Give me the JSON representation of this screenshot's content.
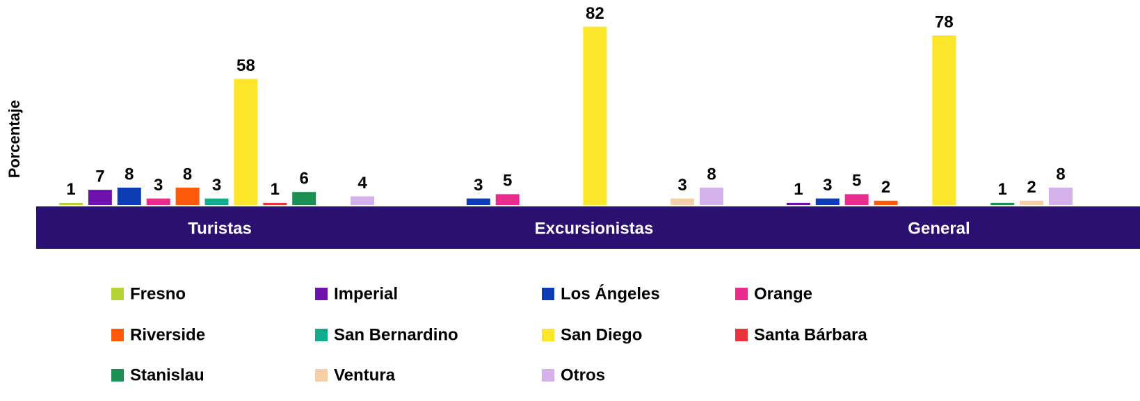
{
  "chart_data": {
    "type": "bar",
    "y_label": "Porcentaje",
    "categories": [
      "Turistas",
      "Excursionistas",
      "General"
    ],
    "ylim": [
      0,
      94
    ],
    "series": [
      {
        "name": "Fresno",
        "color": "#b5d334",
        "values": [
          1,
          null,
          null
        ]
      },
      {
        "name": "Imperial",
        "color": "#7012b0",
        "values": [
          7,
          null,
          1
        ]
      },
      {
        "name": "Los Ángeles",
        "color": "#0c3db5",
        "values": [
          8,
          3,
          3
        ]
      },
      {
        "name": "Orange",
        "color": "#ea2a8c",
        "values": [
          3,
          5,
          5
        ]
      },
      {
        "name": "Riverside",
        "color": "#ff5a0a",
        "values": [
          8,
          null,
          2
        ]
      },
      {
        "name": "San Bernardino",
        "color": "#12ab8c",
        "values": [
          3,
          null,
          null
        ]
      },
      {
        "name": "San Diego",
        "color": "#fde52a",
        "values": [
          58,
          82,
          78
        ]
      },
      {
        "name": "Santa Bárbara",
        "color": "#e8343a",
        "values": [
          1,
          null,
          null
        ]
      },
      {
        "name": "Stanislau",
        "color": "#1e8f52",
        "values": [
          6,
          null,
          1
        ]
      },
      {
        "name": "Ventura",
        "color": "#f4cfa8",
        "values": [
          null,
          3,
          2
        ]
      },
      {
        "name": "Otros",
        "color": "#d4b1ea",
        "values": [
          4,
          8,
          8
        ]
      }
    ]
  }
}
